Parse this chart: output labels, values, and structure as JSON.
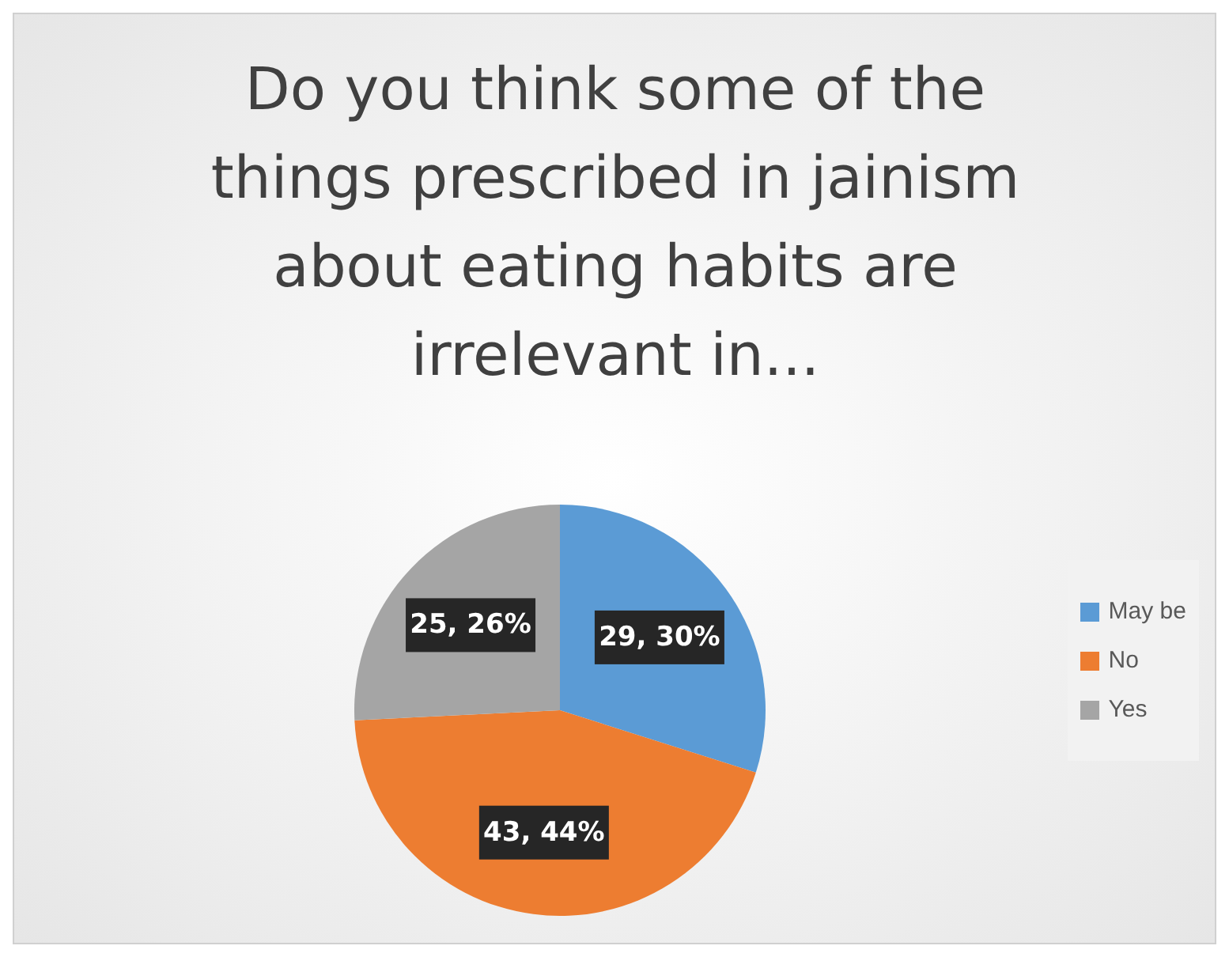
{
  "chart_data": {
    "type": "pie",
    "title": "Do you think some of the things prescribed in jainism about eating habits are irrelevant in...",
    "categories": [
      "May be",
      "No",
      "Yes"
    ],
    "values": [
      29,
      43,
      25
    ],
    "colors": [
      "#5b9bd5",
      "#ed7d31",
      "#a5a5a5"
    ],
    "value_labels": [
      "29, 30%",
      "43, 44%",
      "25, 26%"
    ],
    "legend": "right"
  }
}
